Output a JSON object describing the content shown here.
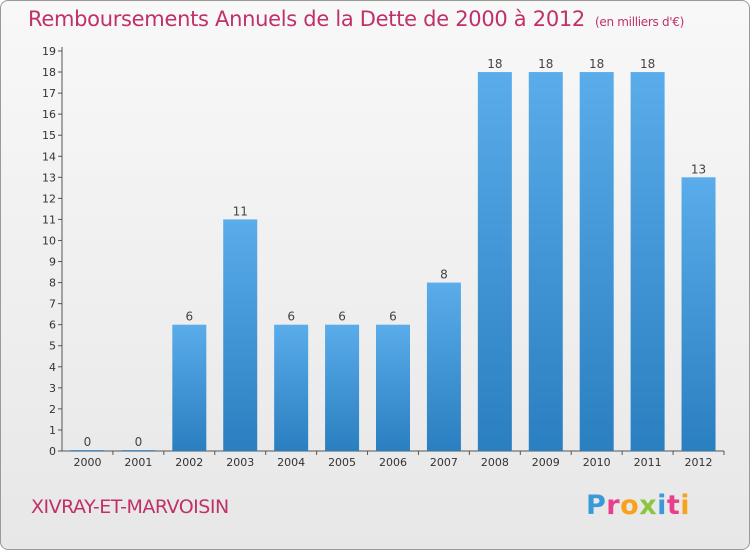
{
  "title": "Remboursements Annuels de la Dette de 2000 à 2012",
  "unit": "(en milliers d'€)",
  "commune": "XIVRAY-ET-MARVOISIN",
  "logo": {
    "letters": [
      "P",
      "r",
      "o",
      "x",
      "i",
      "t",
      "i"
    ],
    "colors": [
      "#3a9ad9",
      "#e83e8c",
      "#f7a21b",
      "#8cc63f",
      "#3a9ad9",
      "#e83e8c",
      "#f7a21b"
    ]
  },
  "colors": {
    "bar_light": "#5aacea",
    "bar_dark": "#2a7fc0",
    "title": "#c0306a"
  },
  "chart_data": {
    "type": "bar",
    "title": "Remboursements Annuels de la Dette de 2000 à 2012",
    "categories": [
      "2000",
      "2001",
      "2002",
      "2003",
      "2004",
      "2005",
      "2006",
      "2007",
      "2008",
      "2009",
      "2010",
      "2011",
      "2012"
    ],
    "values": [
      0,
      0,
      6,
      11,
      6,
      6,
      6,
      8,
      18,
      18,
      18,
      18,
      13
    ],
    "ylim": [
      0,
      19
    ],
    "yticks": [
      0,
      1,
      2,
      3,
      4,
      5,
      6,
      7,
      8,
      9,
      10,
      11,
      12,
      13,
      14,
      15,
      16,
      17,
      18,
      19
    ],
    "grid": false,
    "data_labels": true
  }
}
